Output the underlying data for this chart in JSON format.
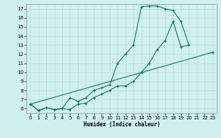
{
  "xlabel": "Humidex (Indice chaleur)",
  "bg_color": "#cff0f0",
  "grid_color": "#b8dede",
  "line_color": "#1a6b5a",
  "xlim": [
    -0.5,
    23.5
  ],
  "ylim": [
    5.5,
    17.5
  ],
  "xticks": [
    0,
    1,
    2,
    3,
    4,
    5,
    6,
    7,
    8,
    9,
    10,
    11,
    12,
    13,
    14,
    15,
    16,
    17,
    18,
    19,
    20,
    21,
    22,
    23
  ],
  "yticks": [
    6,
    7,
    8,
    9,
    10,
    11,
    12,
    13,
    14,
    15,
    16,
    17
  ],
  "curve1_x": [
    0,
    1,
    2,
    3,
    4,
    5,
    6,
    7,
    8,
    9,
    10,
    11,
    12,
    13,
    14,
    15,
    16,
    17,
    18,
    19,
    20,
    21,
    22,
    23
  ],
  "curve1_y": [
    6.5,
    5.8,
    6.1,
    5.9,
    6.0,
    5.9,
    6.5,
    6.6,
    7.2,
    7.6,
    8.0,
    8.5,
    8.5,
    9.0,
    10.0,
    11.0,
    12.5,
    13.5,
    15.6,
    12.8,
    13.0,
    null,
    null,
    null
  ],
  "curve2_x": [
    0,
    1,
    2,
    3,
    4,
    5,
    6,
    7,
    8,
    9,
    10,
    11,
    12,
    13,
    14,
    15,
    16,
    17,
    18,
    19,
    20,
    21,
    22,
    23
  ],
  "curve2_y": [
    6.5,
    5.8,
    6.1,
    5.9,
    6.0,
    7.2,
    6.8,
    7.2,
    8.0,
    8.3,
    8.6,
    11.0,
    12.0,
    13.0,
    17.2,
    17.3,
    17.3,
    17.0,
    16.8,
    15.6,
    13.0,
    null,
    null,
    null
  ],
  "curve3_x": [
    0,
    23
  ],
  "curve3_y": [
    6.5,
    12.2
  ]
}
